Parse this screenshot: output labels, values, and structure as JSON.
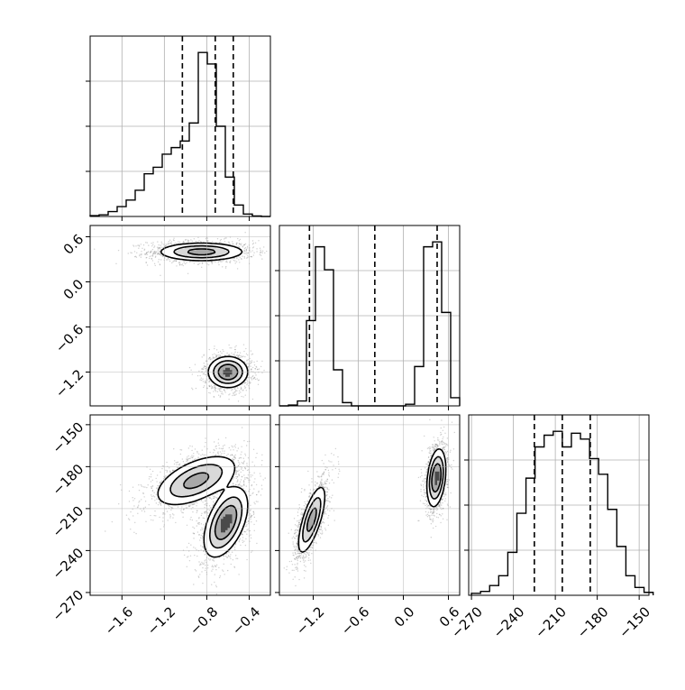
{
  "chart_data": {
    "type": "corner",
    "grid": true,
    "parameters": [
      {
        "range": [
          -1.9,
          -0.2
        ],
        "ticks": [
          -1.6,
          -1.2,
          -0.8,
          -0.4
        ],
        "tick_labels": [
          "−1.6",
          "−1.2",
          "−0.8",
          "−0.4"
        ]
      },
      {
        "range": [
          -1.65,
          0.75
        ],
        "ticks": [
          -1.2,
          -0.6,
          0.0,
          0.6
        ],
        "tick_labels": [
          "−1.2",
          "−0.6",
          "0.0",
          "0.6"
        ]
      },
      {
        "range": [
          -272,
          -143
        ],
        "ticks": [
          -270,
          -240,
          -210,
          -180,
          -150
        ],
        "tick_labels": [
          "−270",
          "−240",
          "−210",
          "−180",
          "−150"
        ]
      }
    ],
    "diagonal": [
      {
        "bins_start": -1.9,
        "bin_width": 0.085,
        "counts": [
          0.5,
          1,
          3,
          6,
          10,
          16,
          26,
          30,
          38,
          42,
          46,
          57,
          100,
          93,
          55,
          24,
          7,
          1.5,
          0.3,
          0
        ],
        "quantiles": [
          -1.03,
          -0.72,
          -0.55
        ]
      },
      {
        "bins_start": -1.65,
        "bin_width": 0.12,
        "counts": [
          0,
          0.5,
          3,
          52,
          97,
          83,
          22,
          2,
          0,
          0,
          0,
          0,
          0,
          0,
          1,
          24,
          97,
          100,
          57,
          5
        ],
        "quantiles": [
          -1.25,
          -0.38,
          0.45
        ]
      },
      {
        "bins_start": -270,
        "bin_width": 6.5,
        "counts": [
          1,
          2,
          5,
          10,
          22,
          42,
          60,
          76,
          82,
          84,
          76,
          83,
          80,
          70,
          62,
          44,
          25,
          10,
          4,
          1.5
        ],
        "quantiles": [
          -225,
          -205,
          -185
        ]
      }
    ],
    "pairs": [
      {
        "x_param": 0,
        "y_param": 1,
        "clusters": [
          {
            "cx": -0.85,
            "cy": 0.4,
            "sx": 0.2,
            "sy": 0.06,
            "rho": 0.0,
            "weight": 0.5
          },
          {
            "cx": -0.6,
            "cy": -1.2,
            "sx": 0.09,
            "sy": 0.1,
            "rho": 0.0,
            "weight": 0.5
          }
        ]
      },
      {
        "x_param": 0,
        "y_param": 2,
        "clusters": [
          {
            "cx": -0.9,
            "cy": -190,
            "sx": 0.19,
            "sy": 9,
            "rho": 0.55,
            "weight": 0.5
          },
          {
            "cx": -0.62,
            "cy": -220,
            "sx": 0.1,
            "sy": 12,
            "rho": 0.5,
            "weight": 0.5
          }
        ]
      },
      {
        "x_param": 1,
        "y_param": 2,
        "clusters": [
          {
            "cx": -1.22,
            "cy": -218,
            "sx": 0.09,
            "sy": 12,
            "rho": 0.72,
            "weight": 0.5
          },
          {
            "cx": 0.44,
            "cy": -188,
            "sx": 0.06,
            "sy": 10,
            "rho": 0.3,
            "weight": 0.5
          }
        ]
      }
    ]
  }
}
